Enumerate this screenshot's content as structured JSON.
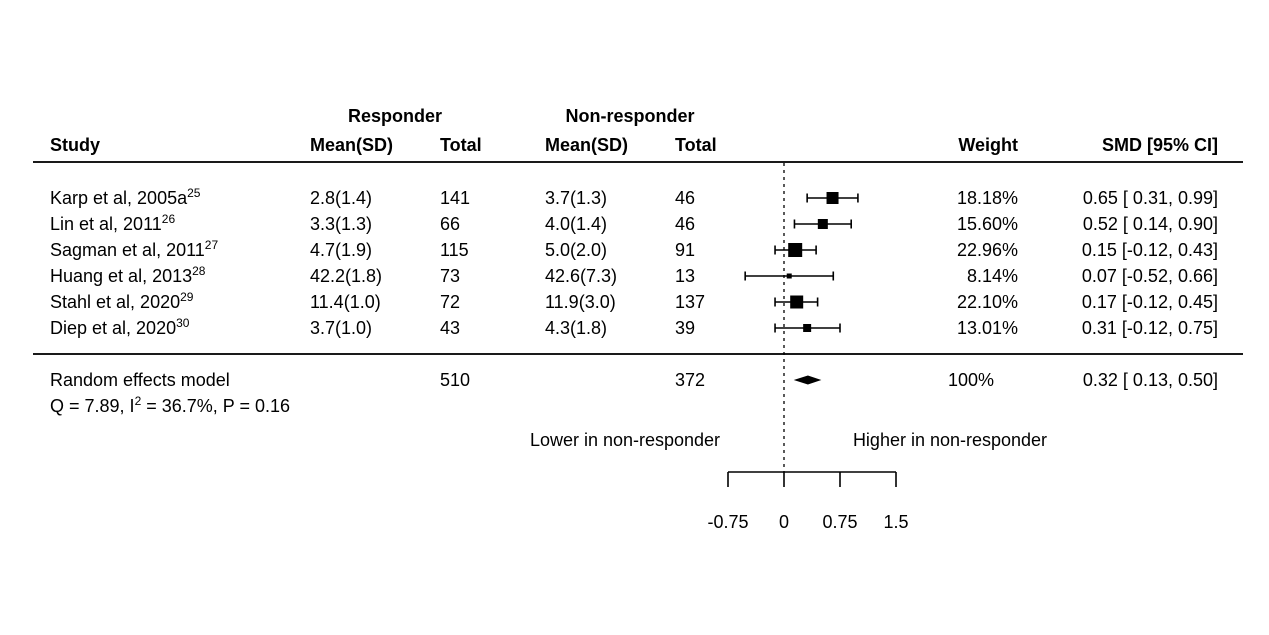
{
  "page": {
    "background": "#ffffff",
    "text_color": "#000000"
  },
  "header": {
    "responder_group": "Responder",
    "nonresponder_group": "Non-responder",
    "study": "Study",
    "mean_sd_responder": "Mean(SD)",
    "total_responder": "Total",
    "mean_sd_nonresponder": "Mean(SD)",
    "total_nonresponder": "Total",
    "weight": "Weight",
    "smd_ci": "SMD [95% CI]"
  },
  "chart_data": {
    "type": "forest",
    "x_axis": {
      "range": [
        -0.75,
        1.5
      ],
      "ticks": [
        -0.75,
        0,
        0.75,
        1.5
      ],
      "tick_labels": [
        "-0.75",
        "0",
        "0.75",
        "1.5"
      ],
      "zero_reference_line": 0
    },
    "direction_labels": {
      "left": "Lower in non-responder",
      "right": "Higher in non-responder"
    },
    "studies": [
      {
        "name": "Karp et al, 2005a",
        "ref": "25",
        "responder_mean_sd": "2.8(1.4)",
        "responder_total": "141",
        "nonresponder_mean_sd": "3.7(1.3)",
        "nonresponder_total": "46",
        "weight": "18.18%",
        "smd": 0.65,
        "ci_low": 0.31,
        "ci_high": 0.99,
        "smd_label": "0.65 [ 0.31, 0.99]",
        "marker_size": 12
      },
      {
        "name": "Lin et al, 2011",
        "ref": "26",
        "responder_mean_sd": "3.3(1.3)",
        "responder_total": "66",
        "nonresponder_mean_sd": "4.0(1.4)",
        "nonresponder_total": "46",
        "weight": "15.60%",
        "smd": 0.52,
        "ci_low": 0.14,
        "ci_high": 0.9,
        "smd_label": "0.52 [ 0.14, 0.90]",
        "marker_size": 10
      },
      {
        "name": "Sagman et al, 2011",
        "ref": "27",
        "responder_mean_sd": "4.7(1.9)",
        "responder_total": "115",
        "nonresponder_mean_sd": "5.0(2.0)",
        "nonresponder_total": "91",
        "weight": "22.96%",
        "smd": 0.15,
        "ci_low": -0.12,
        "ci_high": 0.43,
        "smd_label": "0.15 [-0.12, 0.43]",
        "marker_size": 14
      },
      {
        "name": "Huang et al, 2013",
        "ref": "28",
        "responder_mean_sd": "42.2(1.8)",
        "responder_total": "73",
        "nonresponder_mean_sd": "42.6(7.3)",
        "nonresponder_total": "13",
        "weight": "8.14%",
        "smd": 0.07,
        "ci_low": -0.52,
        "ci_high": 0.66,
        "smd_label": "0.07 [-0.52, 0.66]",
        "marker_size": 5
      },
      {
        "name": "Stahl et al, 2020",
        "ref": "29",
        "responder_mean_sd": "11.4(1.0)",
        "responder_total": "72",
        "nonresponder_mean_sd": "11.9(3.0)",
        "nonresponder_total": "137",
        "weight": "22.10%",
        "smd": 0.17,
        "ci_low": -0.12,
        "ci_high": 0.45,
        "smd_label": "0.17 [-0.12, 0.45]",
        "marker_size": 13
      },
      {
        "name": "Diep et al, 2020",
        "ref": "30",
        "responder_mean_sd": "3.7(1.0)",
        "responder_total": "43",
        "nonresponder_mean_sd": "4.3(1.8)",
        "nonresponder_total": "39",
        "weight": "13.01%",
        "smd": 0.31,
        "ci_low": -0.12,
        "ci_high": 0.75,
        "smd_label": "0.31 [-0.12, 0.75]",
        "marker_size": 8
      }
    ],
    "summary": {
      "name": "Random effects model",
      "responder_total": "510",
      "nonresponder_total": "372",
      "weight": "100%",
      "smd": 0.32,
      "ci_low": 0.13,
      "ci_high": 0.5,
      "smd_label": "0.32 [ 0.13, 0.50]"
    },
    "heterogeneity": {
      "prefix": "Q = 7.89, I",
      "sup": "2",
      "suffix": " = 36.7%, P = 0.16"
    }
  },
  "colors": {
    "marker": "#000000",
    "line": "#000000",
    "rule": "#1a1a1a"
  }
}
